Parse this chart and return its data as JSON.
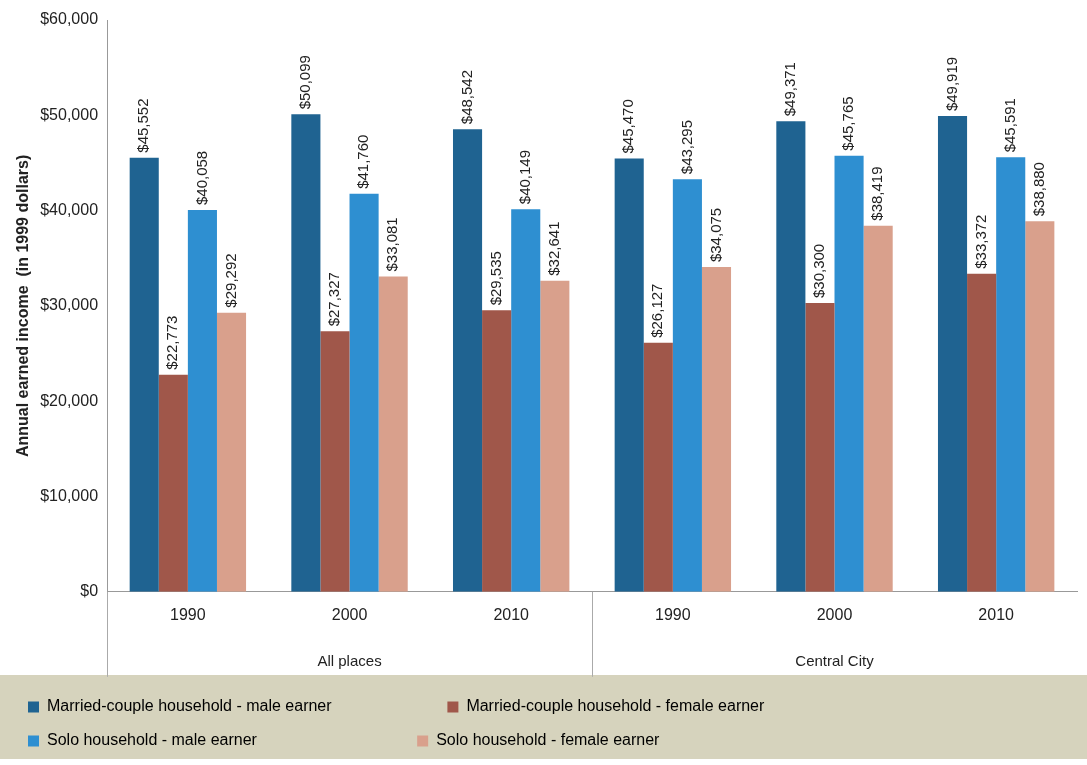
{
  "chart_data": {
    "type": "bar",
    "ylabel": "Annual earned income  (in 1999 dollars)",
    "categories": [
      "1990",
      "2000",
      "2010",
      "1990",
      "2000",
      "2010"
    ],
    "series": [
      {
        "name": "Married-couple household - male earner",
        "color": "#1f6391",
        "values": [
          45552,
          50099,
          48542,
          45470,
          49371,
          49919
        ],
        "value_labels": [
          "$45,552",
          "$50,099",
          "$48,542",
          "$45,470",
          "$49,371",
          "$49,919"
        ]
      },
      {
        "name": "Married-couple household - female earner",
        "color": "#a0574a",
        "values": [
          22773,
          27327,
          29535,
          26127,
          30300,
          33372
        ],
        "value_labels": [
          "$22,773",
          "$27,327",
          "$29,535",
          "$26,127",
          "$30,300",
          "$33,372"
        ]
      },
      {
        "name": "Solo household - male earner",
        "color": "#2e8fd1",
        "values": [
          40058,
          41760,
          40149,
          43295,
          45765,
          45591
        ],
        "value_labels": [
          "$40,058",
          "$41,760",
          "$40,149",
          "$43,295",
          "$45,765",
          "$45,591"
        ]
      },
      {
        "name": "Solo household - female earner",
        "color": "#d9a08c",
        "values": [
          29292,
          33081,
          32641,
          34075,
          38419,
          38880
        ],
        "value_labels": [
          "$29,292",
          "$33,081",
          "$32,641",
          "$34,075",
          "$38,419",
          "$38,880"
        ]
      }
    ],
    "ylim": [
      0,
      60000
    ],
    "yticks": [
      {
        "value": 0,
        "label": "$0"
      },
      {
        "value": 10000,
        "label": "$10,000"
      },
      {
        "value": 20000,
        "label": "$20,000"
      },
      {
        "value": 30000,
        "label": "$30,000"
      },
      {
        "value": 40000,
        "label": "$40,000"
      },
      {
        "value": 50000,
        "label": "$50,000"
      },
      {
        "value": 60000,
        "label": "$60,000"
      }
    ],
    "grid": false,
    "legend": "bottom",
    "annotations": [
      "All places",
      "Central City"
    ]
  }
}
